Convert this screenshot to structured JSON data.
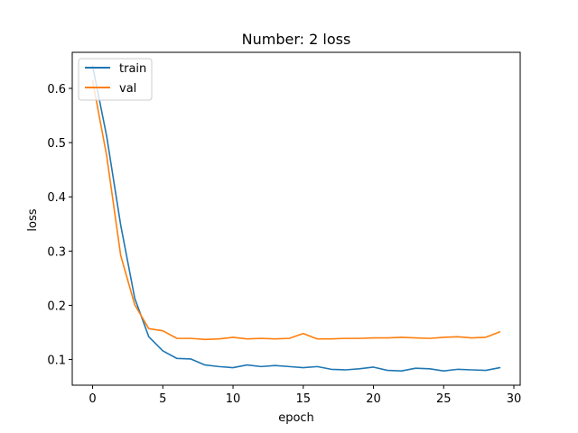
{
  "chart_data": {
    "type": "line",
    "title": "Number: 2 loss",
    "xlabel": "epoch",
    "ylabel": "loss",
    "xlim": [
      -1.45,
      30.45
    ],
    "ylim": [
      0.0527,
      0.6665
    ],
    "xticks": [
      0,
      5,
      10,
      15,
      20,
      25,
      30
    ],
    "yticks": [
      0.1,
      0.2,
      0.3,
      0.4,
      0.5,
      0.6
    ],
    "ytick_labels": [
      "0.1",
      "0.2",
      "0.3",
      "0.4",
      "0.5",
      "0.6"
    ],
    "grid": false,
    "legend_position": "upper left",
    "x": [
      0,
      1,
      2,
      3,
      4,
      5,
      6,
      7,
      8,
      9,
      10,
      11,
      12,
      13,
      14,
      15,
      16,
      17,
      18,
      19,
      20,
      21,
      22,
      23,
      24,
      25,
      26,
      27,
      28,
      29
    ],
    "series": [
      {
        "name": "train",
        "color": "#1f77b4",
        "values": [
          0.641,
          0.512,
          0.348,
          0.213,
          0.142,
          0.116,
          0.102,
          0.101,
          0.09,
          0.087,
          0.085,
          0.09,
          0.087,
          0.089,
          0.087,
          0.085,
          0.087,
          0.082,
          0.081,
          0.083,
          0.086,
          0.08,
          0.079,
          0.084,
          0.083,
          0.079,
          0.082,
          0.081,
          0.08,
          0.085
        ]
      },
      {
        "name": "val",
        "color": "#ff7f0e",
        "values": [
          0.614,
          0.476,
          0.292,
          0.201,
          0.157,
          0.153,
          0.139,
          0.139,
          0.137,
          0.138,
          0.141,
          0.138,
          0.139,
          0.138,
          0.139,
          0.148,
          0.138,
          0.138,
          0.139,
          0.139,
          0.14,
          0.14,
          0.141,
          0.14,
          0.139,
          0.141,
          0.142,
          0.14,
          0.141,
          0.151
        ]
      }
    ]
  }
}
